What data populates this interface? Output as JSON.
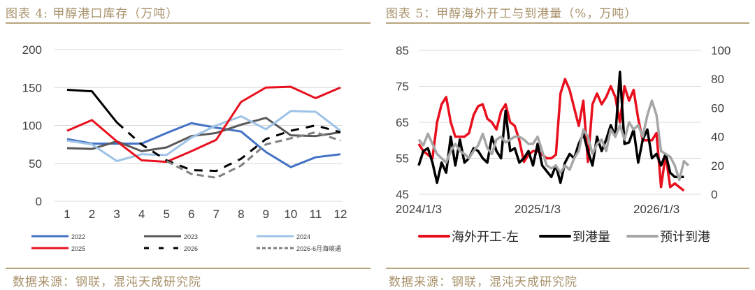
{
  "left": {
    "title": "图表 4:  甲醇港口库存（万吨）",
    "source": "数据来源：钢联，混沌天成研究院"
  },
  "right": {
    "title": "图表 5：甲醇海外开工与到港量（%，万吨）",
    "source": "数据来源：钢联，混沌天成研究院"
  },
  "colors": {
    "accent": "#a8916a"
  },
  "chart_data": [
    {
      "type": "line",
      "title": "甲醇港口库存（万吨）",
      "categories": [
        "1",
        "2",
        "3",
        "4",
        "5",
        "6",
        "7",
        "8",
        "9",
        "10",
        "11",
        "12"
      ],
      "ylim": [
        0,
        200
      ],
      "yticks": [
        "0",
        "50",
        "100",
        "150",
        "200"
      ],
      "grid": true,
      "legend_position": "bottom",
      "series": [
        {
          "name": "2022",
          "color": "#4472c4",
          "dash": false,
          "values": [
            82,
            76,
            76,
            76,
            90,
            103,
            97,
            92,
            65,
            45,
            58,
            62
          ]
        },
        {
          "name": "2023",
          "color": "#595959",
          "dash": false,
          "values": [
            70,
            69,
            79,
            66,
            71,
            86,
            90,
            101,
            110,
            87,
            86,
            91
          ]
        },
        {
          "name": "2024",
          "color": "#9dc3e6",
          "dash": false,
          "values": [
            80,
            75,
            53,
            62,
            61,
            84,
            100,
            112,
            95,
            119,
            118,
            93
          ]
        },
        {
          "name": "2025",
          "color": "#e8101e",
          "dash": false,
          "values": [
            93,
            107,
            79,
            54,
            52,
            66,
            81,
            131,
            150,
            151,
            136,
            150
          ]
        },
        {
          "name": "2026",
          "color": "#000000",
          "dash": true,
          "solid_until_index": 2,
          "values": [
            147,
            145,
            104,
            75,
            54,
            41,
            40,
            56,
            82,
            93,
            100,
            91
          ]
        },
        {
          "name": "2026-6月海峡通",
          "color": "#808080",
          "dash": true,
          "values": [
            null,
            null,
            null,
            null,
            53,
            36,
            31,
            47,
            75,
            83,
            91,
            80
          ]
        }
      ]
    },
    {
      "type": "line",
      "title": "甲醇海外开工与到港量（%，万吨）",
      "x_tick_labels": [
        "2024/1/3",
        "2025/1/3",
        "2026/1/3"
      ],
      "x_start": "2024/1/3",
      "weeks_per_point": 2,
      "ylim_left": [
        45,
        85
      ],
      "yticks_left": [
        "45",
        "55",
        "65",
        "75",
        "85"
      ],
      "ylim_right": [
        0,
        100
      ],
      "yticks_right": [
        "0",
        "20",
        "40",
        "60",
        "80",
        "100"
      ],
      "grid": true,
      "legend_position": "bottom",
      "series": [
        {
          "name": "海外开工-左",
          "axis": "left",
          "color": "#e8101e",
          "values": [
            59,
            57,
            56,
            55,
            65,
            70,
            72,
            65,
            61,
            61,
            61,
            62,
            67,
            69.5,
            70,
            66,
            65,
            63,
            68,
            70,
            65,
            64,
            60,
            54,
            56,
            57,
            57,
            56,
            55,
            55,
            56,
            73,
            77,
            74,
            69,
            64,
            71,
            54,
            70,
            73,
            70,
            72,
            75,
            72,
            65,
            75,
            71,
            74,
            66,
            60,
            60,
            60,
            62,
            47,
            56,
            47,
            48,
            47,
            46
          ]
        },
        {
          "name": "到港量",
          "axis": "right",
          "color": "#000000",
          "values": [
            20,
            30,
            32,
            22,
            8,
            22,
            15,
            40,
            20,
            38,
            22,
            25,
            32,
            30,
            25,
            22,
            40,
            30,
            25,
            58,
            30,
            32,
            22,
            25,
            30,
            20,
            35,
            20,
            16,
            12,
            20,
            8,
            22,
            28,
            25,
            35,
            42,
            30,
            20,
            40,
            30,
            38,
            48,
            40,
            85,
            35,
            36,
            45,
            22,
            38,
            45,
            25,
            28,
            20,
            28,
            15,
            12,
            12,
            12
          ]
        },
        {
          "name": "预计到港",
          "axis": "right",
          "color": "#a6a6a6",
          "values": [
            38,
            34,
            42,
            35,
            28,
            25,
            22,
            30,
            35,
            30,
            28,
            25,
            30,
            34,
            42,
            32,
            28,
            38,
            40,
            36,
            38,
            40,
            40,
            38,
            35,
            35,
            40,
            30,
            20,
            18,
            20,
            15,
            20,
            17,
            25,
            30,
            45,
            40,
            28,
            35,
            38,
            30,
            45,
            40,
            48,
            38,
            50,
            45,
            48,
            40,
            55,
            65,
            55,
            30,
            28,
            26,
            20,
            10,
            23,
            20
          ]
        }
      ]
    }
  ]
}
